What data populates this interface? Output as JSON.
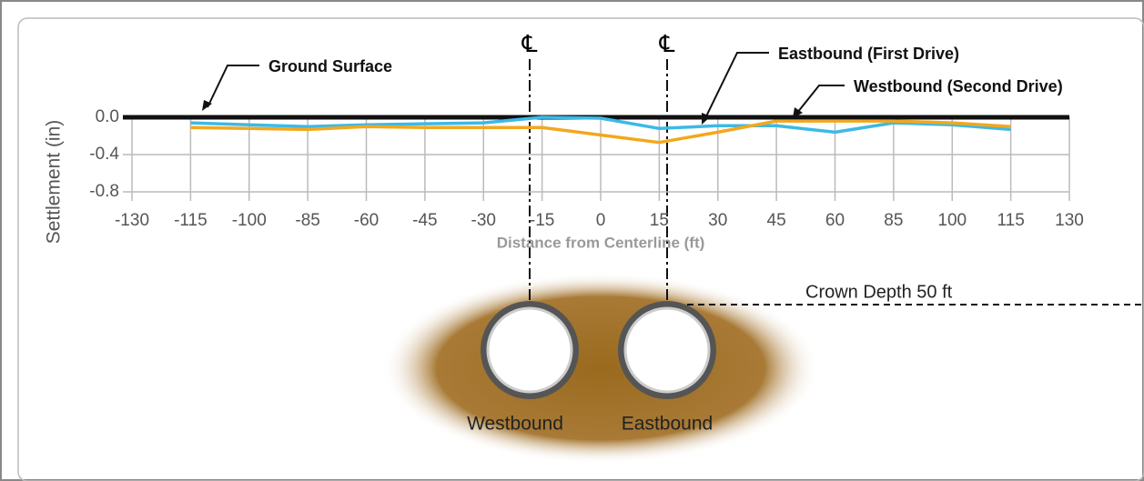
{
  "chart_data": {
    "type": "line",
    "y_label": "Settlement (in)",
    "x_label": "Distance from Centerline (ft)",
    "categories": [
      "-130",
      "-115",
      "-100",
      "-85",
      "-60",
      "-45",
      "-30",
      "-15",
      "0",
      "15",
      "30",
      "45",
      "60",
      "85",
      "100",
      "115",
      "130"
    ],
    "series": [
      {
        "name": "Westbound (Second Drive)",
        "color": "#3db9e6",
        "values": [
          null,
          -0.06,
          -0.08,
          -0.1,
          -0.08,
          -0.07,
          -0.06,
          0,
          -0.01,
          -0.12,
          -0.09,
          -0.09,
          -0.16,
          -0.06,
          -0.08,
          -0.13,
          null
        ]
      },
      {
        "name": "Eastbound (First Drive)",
        "color": "#f2a81d",
        "values": [
          null,
          -0.11,
          -0.12,
          -0.13,
          -0.1,
          -0.11,
          -0.11,
          -0.11,
          -0.19,
          -0.27,
          -0.16,
          -0.04,
          -0.04,
          -0.04,
          -0.06,
          -0.1,
          null
        ]
      }
    ],
    "ylim": [
      -0.8,
      0
    ],
    "yticks": [
      {
        "value": 0,
        "label": "0.0"
      },
      {
        "value": -0.4,
        "label": "-0.4"
      },
      {
        "value": -0.8,
        "label": "-0.8"
      }
    ],
    "grid": true,
    "annotations": {
      "ground_surface": "Ground Surface",
      "centerline_west": "℄",
      "centerline_east": "℄",
      "crown_depth": "Crown Depth 50 ft",
      "westbound_tunnel": "Westbound",
      "eastbound_tunnel": "Eastbound"
    }
  }
}
